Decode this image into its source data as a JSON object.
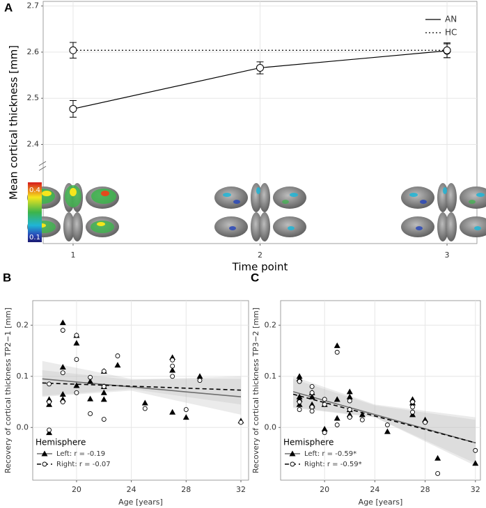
{
  "chart_data": [
    {
      "type": "line",
      "panel_label": "A",
      "y_label": "Mean cortical thickness [mm]",
      "x_label": "Time point",
      "x": [
        1,
        2,
        3
      ],
      "xlim": [
        0.84,
        3.16
      ],
      "xticks": [
        1,
        2,
        3
      ],
      "ylim": [
        2.185,
        2.71
      ],
      "yticks": [
        2.4,
        2.5,
        2.6,
        2.7
      ],
      "grid": true,
      "legend": "top-right",
      "colorbar": {
        "ticks": [
          0.4,
          0.1
        ]
      },
      "series": [
        {
          "name": "AN",
          "color": "#000000",
          "line_style": "solid",
          "values": [
            2.477,
            2.566,
            2.603
          ],
          "errors": [
            0.018,
            0.013,
            0.015
          ]
        },
        {
          "name": "HC",
          "color": "#000000",
          "line_style": "dotted",
          "x": [
            1,
            3
          ],
          "values": [
            2.604,
            2.604
          ],
          "errors": [
            0.017,
            0.016
          ]
        }
      ]
    },
    {
      "type": "scatter",
      "panel_label": "B",
      "y_label": "Recovery of cortical thickness TP2−1 [mm]",
      "x_label": "Age [years]",
      "xlim": [
        16.8,
        32.56
      ],
      "xticks": [
        20,
        24,
        28,
        32
      ],
      "ylim": [
        -0.103,
        0.248
      ],
      "yticks": [
        {
          "value": 0,
          "label": "0.0"
        },
        0.1,
        0.2
      ],
      "grid": true,
      "legend": "bottom-left",
      "legend_title": "Hemisphere",
      "series": [
        {
          "name": "Left: r = -0.19",
          "marker": "triangle",
          "color": "#000000",
          "line_color": "#6e6e6e",
          "line_style": "solid",
          "x": [
            18,
            18,
            18,
            19,
            19,
            19,
            19,
            20,
            20,
            20,
            21,
            21,
            22,
            22,
            22,
            22,
            23,
            25,
            27,
            27,
            27,
            28,
            29,
            32
          ],
          "values": [
            0.055,
            0.045,
            -0.01,
            0.205,
            0.118,
            0.065,
            0.055,
            0.18,
            0.165,
            0.082,
            0.09,
            0.056,
            0.11,
            0.08,
            0.068,
            0.055,
            0.122,
            0.048,
            0.137,
            0.112,
            0.03,
            0.02,
            0.1,
            0.013
          ],
          "fit": {
            "x": [
              17.5,
              32
            ],
            "values": [
              0.095,
              0.06
            ]
          },
          "band": {
            "x": [
              17.5,
              24,
              32
            ],
            "lower": [
              0.06,
              0.072,
              0.025
            ],
            "upper": [
              0.13,
              0.095,
              0.095
            ]
          }
        },
        {
          "name": "Right: r = -0.07",
          "marker": "circle",
          "color": "#000000",
          "line_color": "#000000",
          "line_style": "dashed",
          "x": [
            18,
            18,
            18,
            19,
            19,
            19,
            20,
            20,
            20,
            21,
            21,
            22,
            22,
            22,
            23,
            25,
            27,
            27,
            27,
            28,
            29,
            32
          ],
          "values": [
            0.085,
            0.05,
            -0.005,
            0.19,
            0.107,
            0.05,
            0.18,
            0.133,
            0.068,
            0.098,
            0.027,
            0.11,
            0.08,
            0.016,
            0.14,
            0.037,
            0.132,
            0.12,
            0.1,
            0.035,
            0.092,
            0.01
          ],
          "fit": {
            "x": [
              17.5,
              32
            ],
            "values": [
              0.087,
              0.073
            ]
          },
          "band": {
            "x": [
              17.5,
              24,
              32
            ],
            "lower": [
              0.062,
              0.075,
              0.045
            ],
            "upper": [
              0.112,
              0.093,
              0.1
            ]
          }
        }
      ]
    },
    {
      "type": "scatter",
      "panel_label": "C",
      "y_label": "Recovery of cortical thickness TP3−2 [mm]",
      "x_label": "Age [years]",
      "xlim": [
        16.5,
        32.4
      ],
      "xticks": [
        20,
        24,
        28,
        32
      ],
      "ylim": [
        -0.103,
        0.248
      ],
      "yticks": [
        {
          "value": 0,
          "label": "0.0"
        },
        0.1,
        0.2
      ],
      "grid": true,
      "legend": "bottom-left",
      "legend_title": "Hemisphere",
      "series": [
        {
          "name": "Left: r = -0.59*",
          "marker": "triangle",
          "color": "#000000",
          "line_color": "#6e6e6e",
          "line_style": "solid",
          "x": [
            18,
            18,
            18,
            18,
            18,
            19,
            19,
            19,
            19,
            20,
            20,
            21,
            21,
            21,
            22,
            22,
            22,
            22,
            23,
            25,
            27,
            27,
            27,
            28,
            29,
            32
          ],
          "values": [
            0.1,
            0.095,
            0.06,
            0.055,
            0.045,
            0.068,
            0.06,
            0.045,
            0.042,
            0.045,
            -0.003,
            0.16,
            0.055,
            0.018,
            0.07,
            0.06,
            0.035,
            0.025,
            0.025,
            -0.008,
            0.055,
            0.048,
            0.025,
            0.015,
            -0.06,
            -0.07
          ],
          "fit": {
            "x": [
              17.5,
              32
            ],
            "values": [
              0.07,
              -0.03
            ]
          },
          "band": {
            "x": [
              17.5,
              24,
              32
            ],
            "lower": [
              0.04,
              0.02,
              -0.075
            ],
            "upper": [
              0.1,
              0.045,
              0.02
            ]
          }
        },
        {
          "name": "Right: r = -0.59*",
          "marker": "circle",
          "color": "#000000",
          "line_color": "#000000",
          "line_style": "dashed",
          "x": [
            18,
            18,
            18,
            19,
            19,
            19,
            19,
            20,
            20,
            20,
            21,
            21,
            22,
            22,
            22,
            23,
            25,
            27,
            27,
            27,
            28,
            29,
            32
          ],
          "values": [
            0.09,
            0.05,
            0.035,
            0.08,
            0.068,
            0.04,
            0.032,
            0.055,
            0.045,
            -0.01,
            0.147,
            0.005,
            0.052,
            0.035,
            0.02,
            0.015,
            0.005,
            0.05,
            0.04,
            0.03,
            0.01,
            -0.09,
            -0.045
          ],
          "fit": {
            "x": [
              17.5,
              32
            ],
            "values": [
              0.065,
              -0.03
            ]
          },
          "band": {
            "x": [
              17.5,
              24,
              32
            ],
            "lower": [
              0.038,
              0.02,
              -0.07
            ],
            "upper": [
              0.095,
              0.043,
              0.015
            ]
          }
        }
      ]
    }
  ]
}
